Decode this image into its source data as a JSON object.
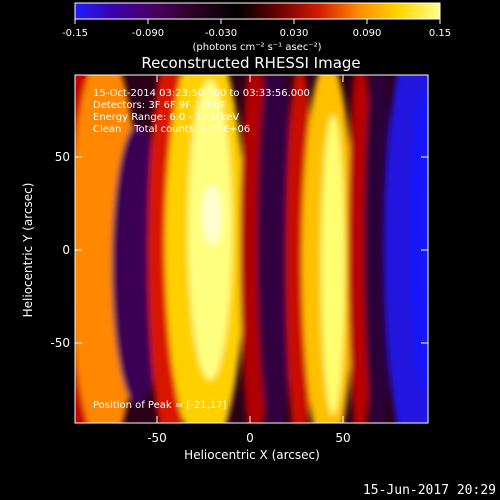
{
  "colorbar": {
    "tick_labels": [
      "-0.15",
      "-0.090",
      "-0.030",
      "0.030",
      "0.090",
      "0.15"
    ],
    "unit_label": "(photons cm⁻² s⁻¹ asec⁻²)",
    "range": [
      -0.15,
      0.15
    ],
    "gradient_colors": [
      "#1f1fff",
      "#3c00a8",
      "#4a0060",
      "#2a0020",
      "#000000",
      "#6a0000",
      "#d21a00",
      "#ff8a00",
      "#ffd700",
      "#ffff90"
    ]
  },
  "plot": {
    "title": "Reconstructed RHESSI Image",
    "xlabel": "Heliocentric X (arcsec)",
    "ylabel": "Heliocentric Y (arcsec)",
    "x_ticks": [
      "-50",
      "0",
      "50"
    ],
    "y_ticks": [
      "50",
      "0",
      "-50"
    ],
    "xlim": [
      -95,
      95
    ],
    "ylim": [
      -95,
      95
    ]
  },
  "annotations": {
    "time_range": "15-Oct-2014 03:23:50.200 to 03:33:56.000",
    "detectors": "Detectors: 3F 6F 9F 10FDF",
    "energy": "Energy Range: 6.0 - 12.0 keV",
    "method": "Clean    Total counts: 2.75E+06",
    "peak": "Position of Peak = [-21,17]"
  },
  "footer": {
    "timestamp": "15-Jun-2017 20:29"
  }
}
